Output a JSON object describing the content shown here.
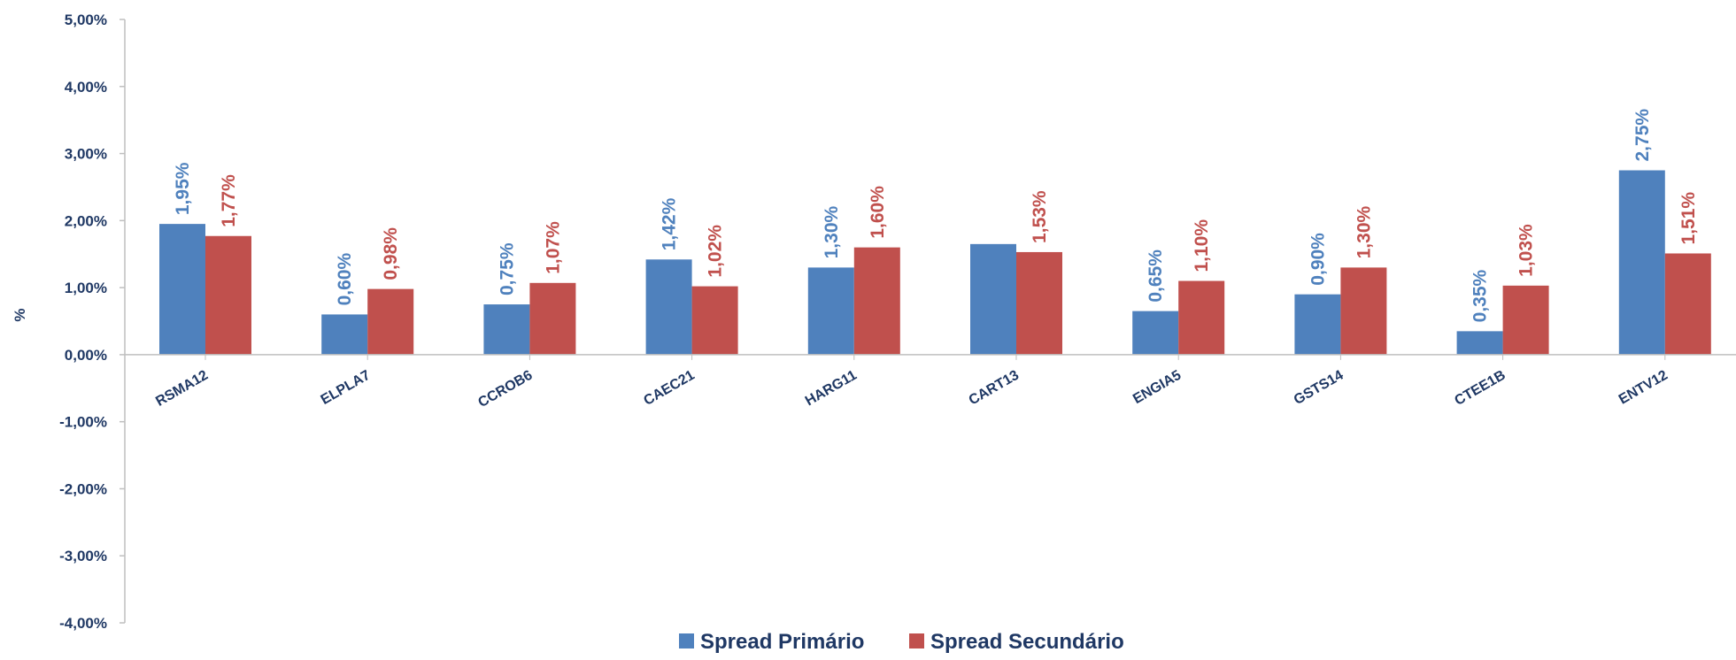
{
  "chart_data": {
    "type": "bar",
    "ylabel": "%",
    "ylim": [
      -4,
      5
    ],
    "y_ticks": [
      "5,00%",
      "4,00%",
      "3,00%",
      "2,00%",
      "1,00%",
      "0,00%",
      "-1,00%",
      "-2,00%",
      "-3,00%",
      "-4,00%"
    ],
    "y_tick_values": [
      5,
      4,
      3,
      2,
      1,
      0,
      -1,
      -2,
      -3,
      -4
    ],
    "categories": [
      "RSMA12",
      "ELPLA7",
      "CCROB6",
      "CAEC21",
      "HARG11",
      "CART13",
      "ENGIA5",
      "GSTS14",
      "CTEE1B",
      "ENTV12"
    ],
    "series": [
      {
        "name": "Spread Primário",
        "color": "#4f81bd",
        "label_color": "#4f81bd",
        "values": [
          1.95,
          0.6,
          0.75,
          1.42,
          1.3,
          1.65,
          0.65,
          0.9,
          0.35,
          2.75
        ],
        "labels": [
          "1,95%",
          "0,60%",
          "0,75%",
          "1,42%",
          "1,30%",
          "",
          "0,65%",
          "0,90%",
          "0,35%",
          "2,75%"
        ]
      },
      {
        "name": "Spread Secundário",
        "color": "#c0504d",
        "label_color": "#c0504d",
        "values": [
          1.77,
          0.98,
          1.07,
          1.02,
          1.6,
          1.53,
          1.1,
          1.3,
          1.03,
          1.51
        ],
        "labels": [
          "1,77%",
          "0,98%",
          "1,07%",
          "1,02%",
          "1,60%",
          "1,53%",
          "1,10%",
          "1,30%",
          "1,03%",
          "1,51%"
        ]
      }
    ],
    "legend_position": "bottom",
    "grid": false,
    "axis_color": "#bfbfbf",
    "text_color": "#1f3864"
  }
}
